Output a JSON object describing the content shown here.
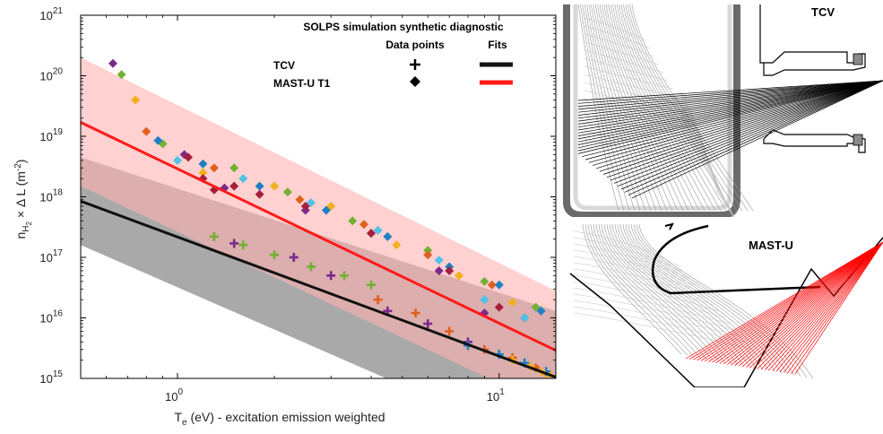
{
  "chart_data": {
    "type": "scatter",
    "x_scale": "log",
    "y_scale": "log",
    "xlim": [
      0.5,
      15
    ],
    "ylim": [
      1000000000000000.0,
      1e+21
    ],
    "xlabel": {
      "base": "T",
      "sub": "e",
      "rest": " (eV) - excitation emission weighted"
    },
    "ylabel": {
      "n": "n",
      "sub1": "H",
      "sub2": "2",
      "mid": " × Δ L (m",
      "sup": "-2",
      "end": ")"
    },
    "x_ticks": [
      {
        "value": 1,
        "base": "10",
        "exp": "0"
      },
      {
        "value": 10,
        "base": "10",
        "exp": "1"
      }
    ],
    "y_ticks": [
      {
        "value": 1000000000000000.0,
        "base": "10",
        "exp": "15"
      },
      {
        "value": 1e+16,
        "base": "10",
        "exp": "16"
      },
      {
        "value": 1e+17,
        "base": "10",
        "exp": "17"
      },
      {
        "value": 1e+18,
        "base": "10",
        "exp": "18"
      },
      {
        "value": 1e+19,
        "base": "10",
        "exp": "19"
      },
      {
        "value": 1e+20,
        "base": "10",
        "exp": "20"
      },
      {
        "value": 1e+21,
        "base": "10",
        "exp": "21"
      }
    ],
    "legend": {
      "title": "SOLPS simulation synthetic diagnostic",
      "col_points": "Data points",
      "col_fits": "Fits",
      "rows": [
        {
          "label": "TCV",
          "marker": "plus",
          "fit_color": "#111111"
        },
        {
          "label": "MAST-U T1",
          "marker": "diamond",
          "fit_color": "#ff1a1a"
        }
      ],
      "placement": "top-right"
    },
    "fits": [
      {
        "device": "TCV",
        "color": "#111111",
        "band_color": "#9a9a9a",
        "line": [
          [
            0.5,
            8.5e+17
          ],
          [
            15,
            1050000000000000.0
          ]
        ],
        "band_upper": [
          [
            0.5,
            4.5e+18
          ],
          [
            15,
            1.3e+16
          ]
        ],
        "band_lower": [
          [
            0.5,
            1.6e+17
          ],
          [
            15,
            60000000000000.0
          ]
        ]
      },
      {
        "device": "MAST-U T1",
        "color": "#ff1a1a",
        "band_color": "#ffb3b3",
        "line": [
          [
            0.5,
            1.7e+19
          ],
          [
            15,
            2900000000000000.0
          ]
        ],
        "band_upper": [
          [
            0.5,
            2e+20
          ],
          [
            15,
            2.8e+16
          ]
        ],
        "band_lower": [
          [
            0.5,
            1.5e+18
          ],
          [
            15,
            300000000000000.0
          ]
        ]
      }
    ],
    "series": [
      {
        "device": "MAST-U T1",
        "marker": "diamond",
        "color": "#7b2a8b",
        "points": [
          [
            0.63,
            1.6e+20
          ],
          [
            1.05,
            5e+18
          ],
          [
            1.4,
            1.4e+18
          ],
          [
            2.5,
            6e+17
          ],
          [
            4,
            2.5e+17
          ],
          [
            6.5,
            6e+16
          ],
          [
            9,
            1.2e+16
          ],
          [
            12,
            1e+16
          ]
        ]
      },
      {
        "device": "MAST-U T1",
        "marker": "diamond",
        "color": "#73b034",
        "points": [
          [
            0.67,
            1.05e+20
          ],
          [
            0.9,
            7.5e+18
          ],
          [
            1.5,
            3e+18
          ],
          [
            2.2,
            1.2e+18
          ],
          [
            3.5,
            4e+17
          ],
          [
            6,
            1.3e+17
          ],
          [
            9,
            4e+16
          ],
          [
            13,
            1.5e+16
          ]
        ]
      },
      {
        "device": "MAST-U T1",
        "marker": "diamond",
        "color": "#f2b01e",
        "points": [
          [
            0.74,
            4e+19
          ],
          [
            1.2,
            2.5e+18
          ],
          [
            2,
            1.5e+18
          ],
          [
            3,
            7e+17
          ],
          [
            4.8,
            1.6e+17
          ],
          [
            7.5,
            5e+16
          ],
          [
            11,
            1.8e+16
          ],
          [
            14,
            1200000000000000.0
          ]
        ]
      },
      {
        "device": "MAST-U T1",
        "marker": "diamond",
        "color": "#e0601f",
        "points": [
          [
            0.8,
            1.2e+19
          ],
          [
            1.3,
            3e+18
          ],
          [
            2.4,
            9e+17
          ],
          [
            3.8,
            3.5e+17
          ],
          [
            6,
            1.1e+17
          ],
          [
            9.5,
            3.5e+16
          ],
          [
            13,
            1500000000000000.0
          ]
        ]
      },
      {
        "device": "MAST-U T1",
        "marker": "diamond",
        "color": "#1f7fc4",
        "points": [
          [
            0.87,
            8.5e+18
          ],
          [
            1.2,
            3.5e+18
          ],
          [
            1.8,
            1.5e+18
          ],
          [
            2.9,
            6e+17
          ],
          [
            4.5,
            2.2e+17
          ],
          [
            7,
            7e+16
          ],
          [
            10,
            3.5e+16
          ],
          [
            13.5,
            1.3e+16
          ]
        ]
      },
      {
        "device": "MAST-U T1",
        "marker": "diamond",
        "color": "#4fc3e8",
        "points": [
          [
            1.0,
            4e+18
          ],
          [
            1.6,
            2e+18
          ],
          [
            2.6,
            8e+17
          ],
          [
            4.2,
            2.8e+17
          ],
          [
            6.5,
            9e+16
          ],
          [
            9,
            2e+16
          ],
          [
            12,
            1e+16
          ]
        ]
      },
      {
        "device": "MAST-U T1",
        "marker": "diamond",
        "color": "#a51f3f",
        "points": [
          [
            1.08,
            4.5e+18
          ],
          [
            1.2,
            2e+18
          ],
          [
            1.3,
            1.3e+18
          ],
          [
            1.5,
            1.5e+18
          ],
          [
            1.8,
            1.1e+18
          ],
          [
            2.5,
            7e+17
          ],
          [
            4,
            2.5e+17
          ],
          [
            7,
            6e+16
          ],
          [
            10,
            1.5e+16
          ]
        ]
      },
      {
        "device": "TCV",
        "marker": "plus",
        "color": "#73b034",
        "points": [
          [
            1.3,
            2.2e+17
          ],
          [
            1.6,
            1.6e+17
          ],
          [
            2,
            1.1e+17
          ],
          [
            2.6,
            7e+16
          ],
          [
            3.3,
            5e+16
          ],
          [
            4,
            3.5e+16
          ]
        ]
      },
      {
        "device": "TCV",
        "marker": "plus",
        "color": "#7b2a8b",
        "points": [
          [
            1.5,
            1.7e+17
          ],
          [
            2.3,
            1e+17
          ],
          [
            3,
            5e+16
          ],
          [
            4.5,
            1.3e+16
          ],
          [
            6,
            8000000000000000.0
          ],
          [
            8,
            4000000000000000.0
          ]
        ]
      },
      {
        "device": "TCV",
        "marker": "plus",
        "color": "#e0601f",
        "points": [
          [
            4.2,
            2e+16
          ],
          [
            5.5,
            1.2e+16
          ],
          [
            7,
            6000000000000000.0
          ],
          [
            9,
            3000000000000000.0
          ],
          [
            11,
            2200000000000000.0
          ]
        ]
      },
      {
        "device": "TCV",
        "marker": "plus",
        "color": "#1f7fc4",
        "points": [
          [
            8,
            3500000000000000.0
          ],
          [
            10,
            2500000000000000.0
          ],
          [
            12,
            1800000000000000.0
          ],
          [
            14,
            1300000000000000.0
          ]
        ]
      },
      {
        "device": "TCV",
        "marker": "plus",
        "color": "#f2b01e",
        "points": [
          [
            11,
            2000000000000000.0
          ],
          [
            12.5,
            1600000000000000.0
          ],
          [
            13.5,
            1300000000000000.0
          ],
          [
            14.5,
            1100000000000000.0
          ]
        ]
      }
    ]
  },
  "schematics": {
    "tcv_label": "TCV",
    "mastu_label": "MAST-U",
    "tcv_chord_color": "#000000",
    "mastu_chord_color": "#ff0000",
    "mesh_color": "#9a9a9a"
  }
}
